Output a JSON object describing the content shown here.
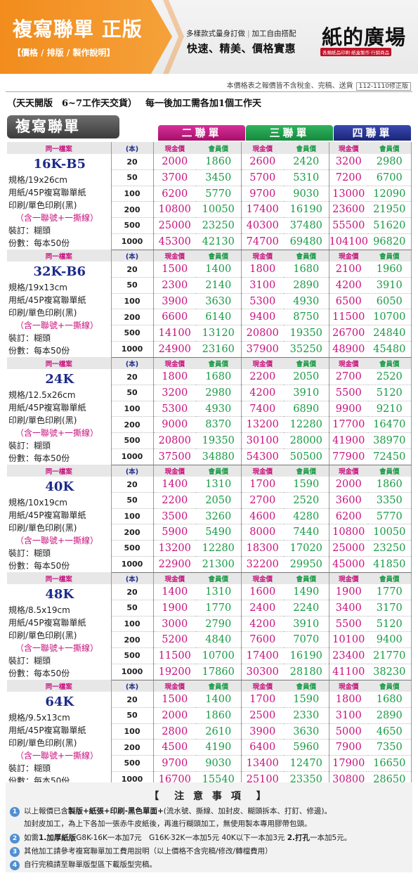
{
  "banner": {
    "title": "複寫聯單 正版",
    "subtitle": "【價格 / 排版 / 製作說明】",
    "tagline_left": "多樣款式量身訂做",
    "tagline_right": "加工自由搭配",
    "tagline_main": "快速、精美、價格實惠",
    "logo": "紙的廣場",
    "logo_sub": "各類紙品印刷‧紙盒製作‧行銷商品"
  },
  "notice": {
    "text": "本價格表之報價皆不含稅金、完稿、送貨",
    "version": "112-1110修正版"
  },
  "subhead": {
    "main": "（天天開版　6~7工作天交貨）",
    "extra": "每一後加工需各加1個工作天"
  },
  "grid_title": "複寫聯單",
  "part_tabs": [
    "二聯單",
    "三聯單",
    "四聯單"
  ],
  "colors": {
    "two_part": "#c8127e",
    "three_part": "#199b45",
    "four_part": "#1d2a8a",
    "banner_orange": "#f28c1d"
  },
  "headers": {
    "same": "同一檔案",
    "unit": "(本)",
    "cash": "現金價",
    "member": "會員價"
  },
  "spec_common": {
    "paper": "用紙/45P複寫聯單紙",
    "print": "印刷/單色印刷(黑)",
    "numbering": "（含一聯號+一撕線）",
    "binding": "裝訂：糊頭",
    "copies": "份數：每本50份"
  },
  "groups": [
    {
      "size": "16K-B5",
      "dims": "規格/19x26cm",
      "rows": [
        {
          "qty": "20",
          "p": [
            "2000",
            "1860",
            "2600",
            "2420",
            "3200",
            "2980"
          ]
        },
        {
          "qty": "50",
          "p": [
            "3700",
            "3450",
            "5700",
            "5310",
            "7200",
            "6700"
          ]
        },
        {
          "qty": "100",
          "p": [
            "6200",
            "5770",
            "9700",
            "9030",
            "13000",
            "12090"
          ]
        },
        {
          "qty": "200",
          "p": [
            "10800",
            "10050",
            "17400",
            "16190",
            "23600",
            "21950"
          ]
        },
        {
          "qty": "500",
          "p": [
            "25000",
            "23250",
            "40300",
            "37480",
            "55500",
            "51620"
          ]
        },
        {
          "qty": "1000",
          "p": [
            "45300",
            "42130",
            "74700",
            "69480",
            "104100",
            "96820"
          ]
        }
      ]
    },
    {
      "size": "32K-B6",
      "dims": "規格/19x13cm",
      "rows": [
        {
          "qty": "20",
          "p": [
            "1500",
            "1400",
            "1800",
            "1680",
            "2100",
            "1960"
          ]
        },
        {
          "qty": "50",
          "p": [
            "2300",
            "2140",
            "3100",
            "2890",
            "4200",
            "3910"
          ]
        },
        {
          "qty": "100",
          "p": [
            "3900",
            "3630",
            "5300",
            "4930",
            "6500",
            "6050"
          ]
        },
        {
          "qty": "200",
          "p": [
            "6600",
            "6140",
            "9400",
            "8750",
            "11500",
            "10700"
          ]
        },
        {
          "qty": "500",
          "p": [
            "14100",
            "13120",
            "20800",
            "19350",
            "26700",
            "24840"
          ]
        },
        {
          "qty": "1000",
          "p": [
            "24900",
            "23160",
            "37900",
            "35250",
            "48900",
            "45480"
          ]
        }
      ]
    },
    {
      "size": "24K",
      "dims": "規格/12.5x26cm",
      "rows": [
        {
          "qty": "20",
          "p": [
            "1800",
            "1680",
            "2200",
            "2050",
            "2700",
            "2520"
          ]
        },
        {
          "qty": "50",
          "p": [
            "3200",
            "2980",
            "4200",
            "3910",
            "5500",
            "5120"
          ]
        },
        {
          "qty": "100",
          "p": [
            "5300",
            "4930",
            "7400",
            "6890",
            "9900",
            "9210"
          ]
        },
        {
          "qty": "200",
          "p": [
            "9000",
            "8370",
            "13200",
            "12280",
            "17700",
            "16470"
          ]
        },
        {
          "qty": "500",
          "p": [
            "20800",
            "19350",
            "30100",
            "28000",
            "41900",
            "38970"
          ]
        },
        {
          "qty": "1000",
          "p": [
            "37500",
            "34880",
            "54300",
            "50500",
            "77900",
            "72450"
          ]
        }
      ]
    },
    {
      "size": "40K",
      "dims": "規格/10x19cm",
      "rows": [
        {
          "qty": "20",
          "p": [
            "1400",
            "1310",
            "1700",
            "1590",
            "2000",
            "1860"
          ]
        },
        {
          "qty": "50",
          "p": [
            "2200",
            "2050",
            "2700",
            "2520",
            "3600",
            "3350"
          ]
        },
        {
          "qty": "100",
          "p": [
            "3500",
            "3260",
            "4600",
            "4280",
            "6200",
            "5770"
          ]
        },
        {
          "qty": "200",
          "p": [
            "5900",
            "5490",
            "8000",
            "7440",
            "10800",
            "10050"
          ]
        },
        {
          "qty": "500",
          "p": [
            "13200",
            "12280",
            "18300",
            "17020",
            "25000",
            "23250"
          ]
        },
        {
          "qty": "1000",
          "p": [
            "22900",
            "21300",
            "32200",
            "29950",
            "45000",
            "41850"
          ]
        }
      ]
    },
    {
      "size": "48K",
      "dims": "規格/8.5x19cm",
      "rows": [
        {
          "qty": "20",
          "p": [
            "1400",
            "1310",
            "1600",
            "1490",
            "1900",
            "1770"
          ]
        },
        {
          "qty": "50",
          "p": [
            "1900",
            "1770",
            "2400",
            "2240",
            "3400",
            "3170"
          ]
        },
        {
          "qty": "100",
          "p": [
            "3000",
            "2790",
            "4200",
            "3910",
            "5500",
            "5120"
          ]
        },
        {
          "qty": "200",
          "p": [
            "5200",
            "4840",
            "7600",
            "7070",
            "10100",
            "9400"
          ]
        },
        {
          "qty": "500",
          "p": [
            "11500",
            "10700",
            "17400",
            "16190",
            "23400",
            "21770"
          ]
        },
        {
          "qty": "1000",
          "p": [
            "19200",
            "17860",
            "30300",
            "28180",
            "41100",
            "38230"
          ]
        }
      ]
    },
    {
      "size": "64K",
      "dims": "規格/9.5x13cm",
      "rows": [
        {
          "qty": "20",
          "p": [
            "1500",
            "1400",
            "1700",
            "1590",
            "1800",
            "1680"
          ]
        },
        {
          "qty": "50",
          "p": [
            "2000",
            "1860",
            "2500",
            "2330",
            "3100",
            "2890"
          ]
        },
        {
          "qty": "100",
          "p": [
            "2800",
            "2610",
            "3900",
            "3630",
            "5000",
            "4650"
          ]
        },
        {
          "qty": "200",
          "p": [
            "4500",
            "4190",
            "6400",
            "5960",
            "7900",
            "7350"
          ]
        },
        {
          "qty": "500",
          "p": [
            "9700",
            "9030",
            "13400",
            "12470",
            "17900",
            "16650"
          ]
        },
        {
          "qty": "1000",
          "p": [
            "16700",
            "15540",
            "25100",
            "23350",
            "30800",
            "28650"
          ]
        }
      ]
    }
  ],
  "notes": {
    "title": "【　注 意 事 項　】",
    "items": [
      {
        "num": "1",
        "pre": "以上報價已含",
        "bold": "製版+紙張+印刷-黑色單面+",
        "post": "(流水號、撕線、加封皮、糊頭拆本、打釘、修邊)。"
      },
      {
        "num": "",
        "pre": "加封皮加工，為上下各加一張赤牛皮紙後，再進行糊頭加工，無使用製本專用膠帶包頭。",
        "bold": "",
        "post": ""
      },
      {
        "num": "2",
        "pre": "如需",
        "bold": "1.加厚紙版",
        "post": "G8K-16K一本加7元　G16K-32K一本加5元 40K以下一本加3元 ",
        "bold2": "2.打孔",
        "post2": "一本加5元。"
      },
      {
        "num": "3",
        "pre": "其他加工請參考複寫聯單加工費用說明（以上價格不含完稿/修改/轉檔費用）",
        "bold": "",
        "post": ""
      },
      {
        "num": "4",
        "pre": "自行完稿請至聯單版型區下載版型完稿。",
        "bold": "",
        "post": ""
      }
    ]
  }
}
